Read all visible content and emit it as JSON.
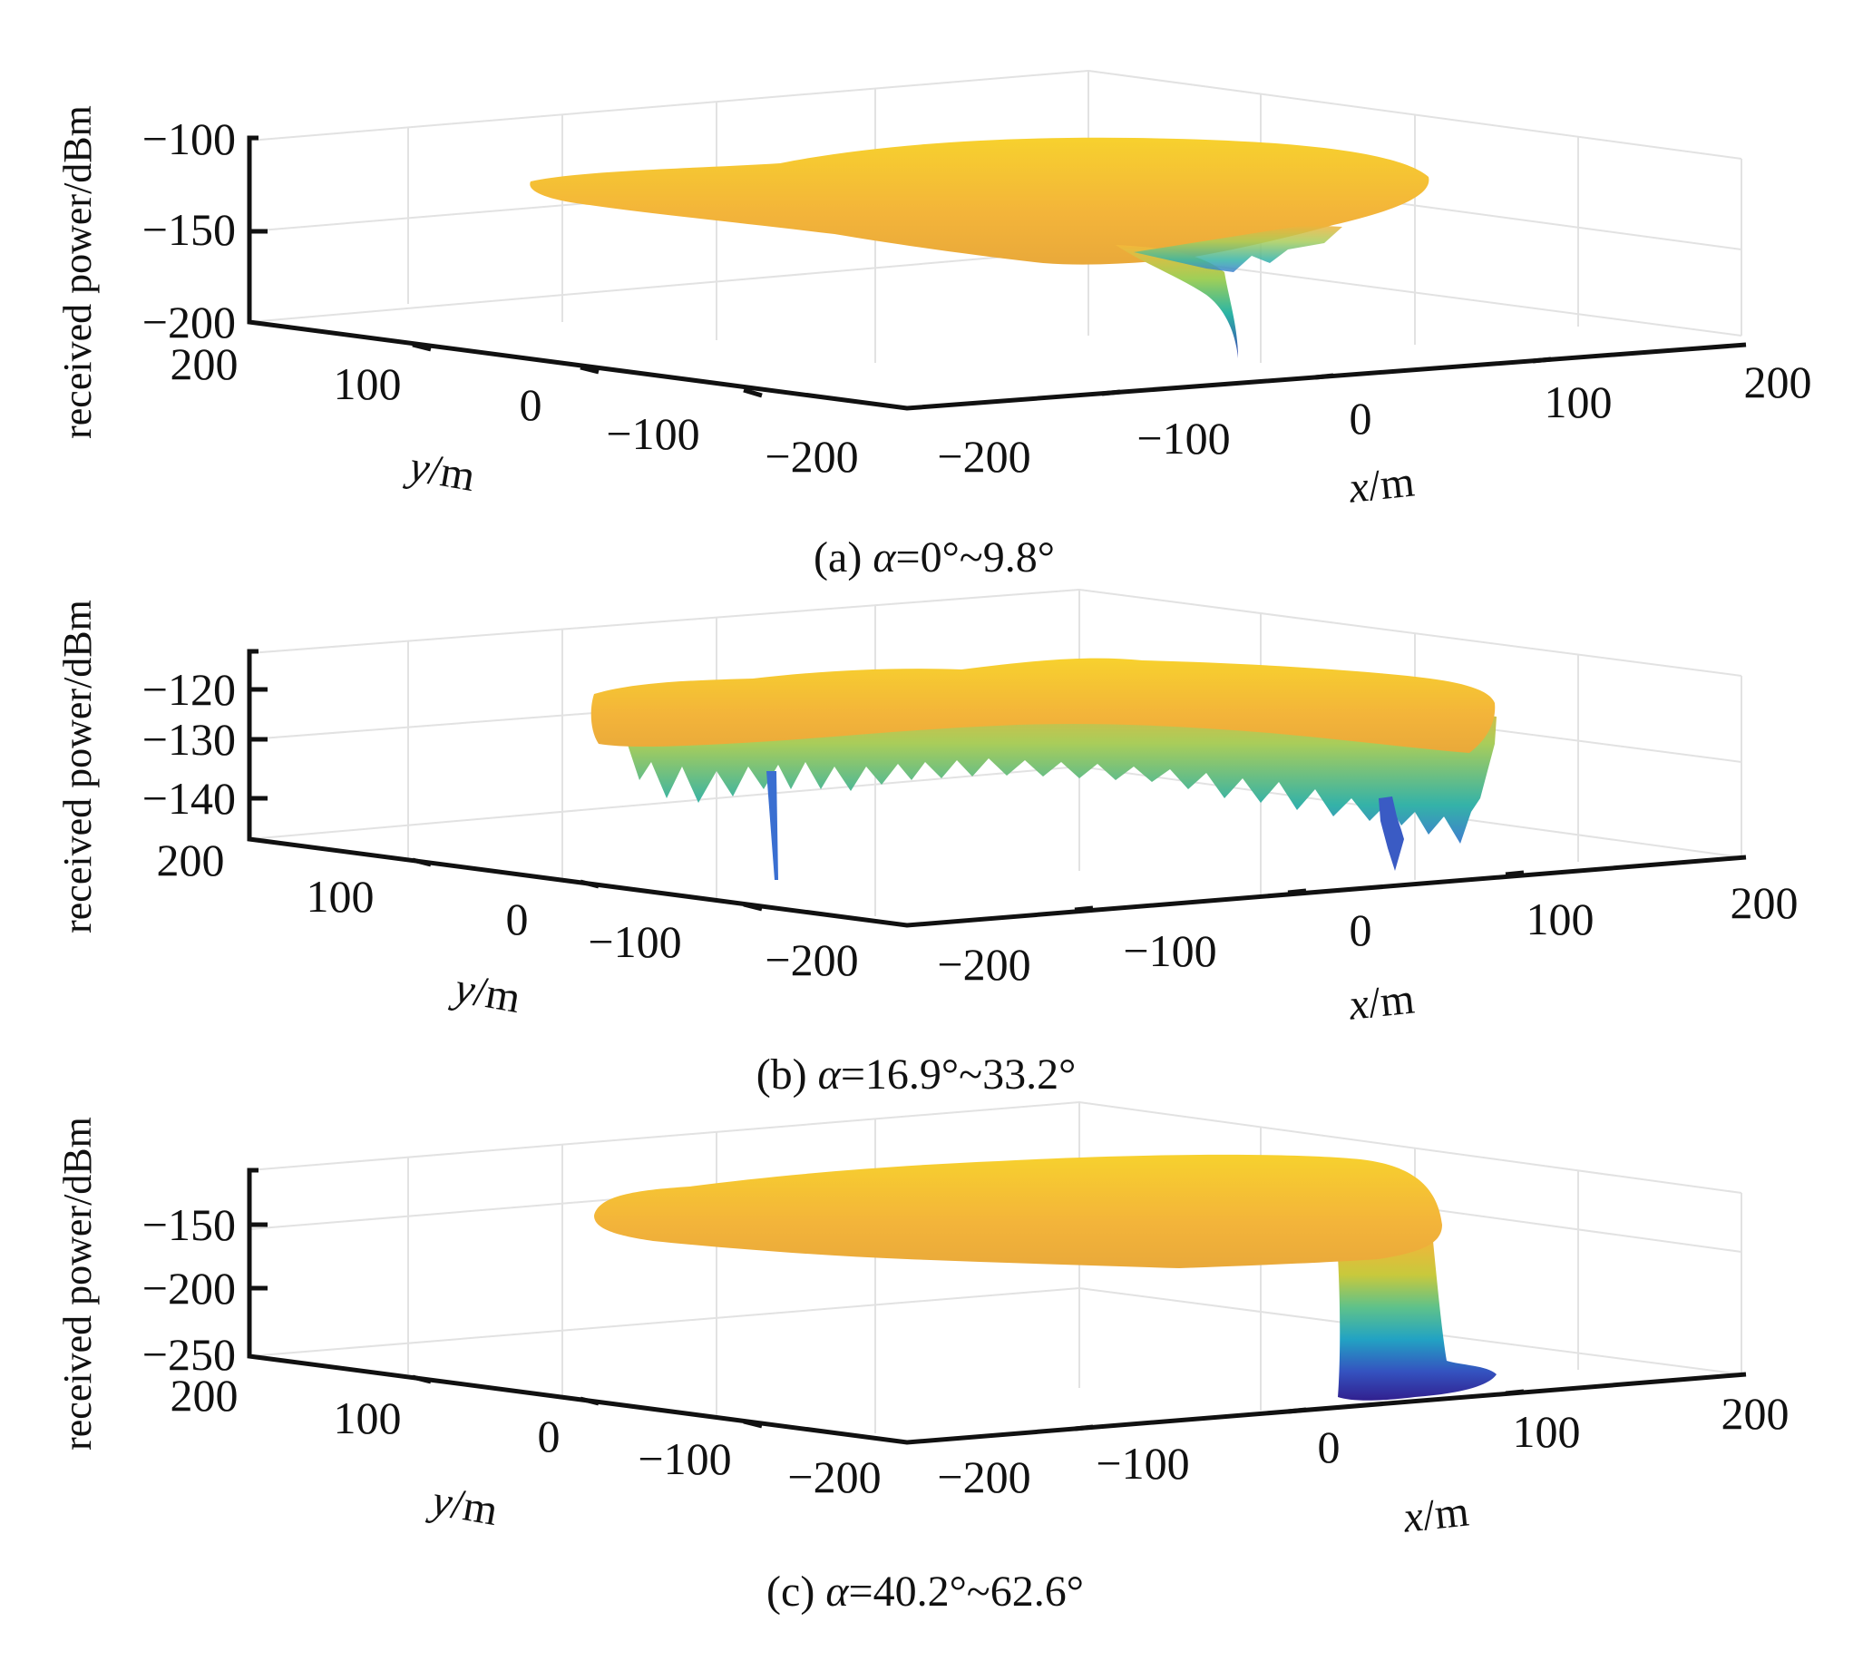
{
  "chart_data": [
    {
      "type": "surface",
      "panel": "a",
      "caption": {
        "prefix": "(a) ",
        "symbol": "α",
        "range": "=0°~9.8°"
      },
      "zlabel": "received power/dBm",
      "xlabel": {
        "var": "x",
        "unit": "/m"
      },
      "ylabel": {
        "var": "y",
        "unit": "/m"
      },
      "x_ticks": [
        "−200",
        "−100",
        "0",
        "100",
        "200"
      ],
      "y_ticks": [
        "200",
        "100",
        "0",
        "−100",
        "−200"
      ],
      "z_ticks": [
        "−100",
        "−150",
        "−200"
      ],
      "xlim": [
        -200,
        200
      ],
      "ylim": [
        -200,
        200
      ],
      "zlim": [
        -200,
        -100
      ],
      "surface_level": -125,
      "dips": [
        {
          "x": -60,
          "y": 0,
          "z": -195
        }
      ],
      "colormap": "parula",
      "grid": true
    },
    {
      "type": "surface",
      "panel": "b",
      "caption": {
        "prefix": "(b) ",
        "symbol": "α",
        "range": "=16.9°~33.2°"
      },
      "zlabel": "received power/dBm",
      "xlabel": {
        "var": "x",
        "unit": "/m"
      },
      "ylabel": {
        "var": "y",
        "unit": "/m"
      },
      "x_ticks": [
        "−200",
        "−100",
        "0",
        "100",
        "200"
      ],
      "y_ticks": [
        "200",
        "100",
        "0",
        "−100",
        "−200"
      ],
      "z_ticks": [
        "−120",
        "−130",
        "−140"
      ],
      "xlim": [
        -200,
        200
      ],
      "ylim": [
        -200,
        200
      ],
      "zlim": [
        -145,
        -115
      ],
      "surface_level": -120,
      "dips": [
        {
          "x": -150,
          "y": 0,
          "z": -145
        },
        {
          "x": 30,
          "y": 0,
          "z": -145
        }
      ],
      "colormap": "parula",
      "grid": true
    },
    {
      "type": "surface",
      "panel": "c",
      "caption": {
        "prefix": "(c) ",
        "symbol": "α",
        "range": "=40.2°~62.6°"
      },
      "zlabel": "received power/dBm",
      "xlabel": {
        "var": "x",
        "unit": "/m"
      },
      "ylabel": {
        "var": "y",
        "unit": "/m"
      },
      "x_ticks": [
        "−200",
        "−100",
        "0",
        "100",
        "200"
      ],
      "y_ticks": [
        "200",
        "100",
        "0",
        "−100",
        "−200"
      ],
      "z_ticks": [
        "−150",
        "−200",
        "−250"
      ],
      "xlim": [
        -200,
        200
      ],
      "ylim": [
        -200,
        200
      ],
      "zlim": [
        -250,
        -100
      ],
      "surface_level": -125,
      "dips": [
        {
          "x": 40,
          "y": 0,
          "z": -250
        }
      ],
      "colormap": "parula",
      "grid": true
    }
  ]
}
